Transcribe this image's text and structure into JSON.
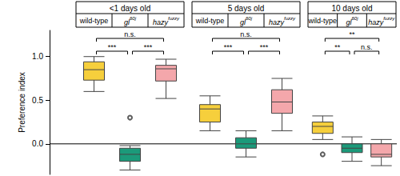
{
  "chart_data": {
    "type": "boxplot",
    "y_label": "Preference index",
    "ylim": [
      -0.35,
      1.3
    ],
    "yticks": [
      {
        "value": 0,
        "label": "0.0"
      },
      {
        "value": 0.5,
        "label": "0.5"
      },
      {
        "value": 1,
        "label": "1.0"
      }
    ],
    "reference_line": 0,
    "series": [
      {
        "name": "wild-type",
        "color": "#f6cf3c"
      },
      {
        "name": "gl",
        "name_superscript": "60j",
        "color": "#1b9a7a"
      },
      {
        "name": "hazy",
        "name_superscript": "fuzzy",
        "color": "#f4a7ab"
      }
    ],
    "panels": [
      {
        "title": "<1 days old",
        "boxes": [
          [
            0.6,
            0.73,
            0.85,
            0.94,
            1.0
          ],
          [
            -0.3,
            -0.2,
            -0.12,
            -0.05,
            -0.02
          ],
          [
            0.52,
            0.72,
            0.86,
            0.9,
            0.97
          ]
        ],
        "outliers": [
          [],
          [
            0.3
          ],
          []
        ],
        "significance": [
          {
            "from": 0,
            "to": 1,
            "label": "***"
          },
          {
            "from": 1,
            "to": 2,
            "label": "***"
          },
          {
            "from": 0,
            "to": 2,
            "label": "n.s."
          }
        ]
      },
      {
        "title": "5 days old",
        "boxes": [
          [
            0.15,
            0.25,
            0.4,
            0.45,
            0.55
          ],
          [
            -0.15,
            -0.05,
            0.0,
            0.07,
            0.15
          ],
          [
            0.15,
            0.35,
            0.48,
            0.62,
            0.75
          ]
        ],
        "outliers": [
          [],
          [],
          []
        ],
        "significance": [
          {
            "from": 0,
            "to": 1,
            "label": "***"
          },
          {
            "from": 1,
            "to": 2,
            "label": "***"
          },
          {
            "from": 0,
            "to": 2,
            "label": "n.s."
          }
        ]
      },
      {
        "title": "10 days old",
        "boxes": [
          [
            0.05,
            0.12,
            0.2,
            0.25,
            0.32
          ],
          [
            -0.2,
            -0.1,
            -0.05,
            0.0,
            0.08
          ],
          [
            -0.25,
            -0.15,
            -0.12,
            0.0,
            0.05
          ]
        ],
        "outliers": [
          [
            -0.12
          ],
          [],
          []
        ],
        "significance": [
          {
            "from": 0,
            "to": 1,
            "label": "**"
          },
          {
            "from": 1,
            "to": 2,
            "label": "n.s."
          },
          {
            "from": 0,
            "to": 2,
            "label": "**"
          }
        ]
      }
    ]
  }
}
